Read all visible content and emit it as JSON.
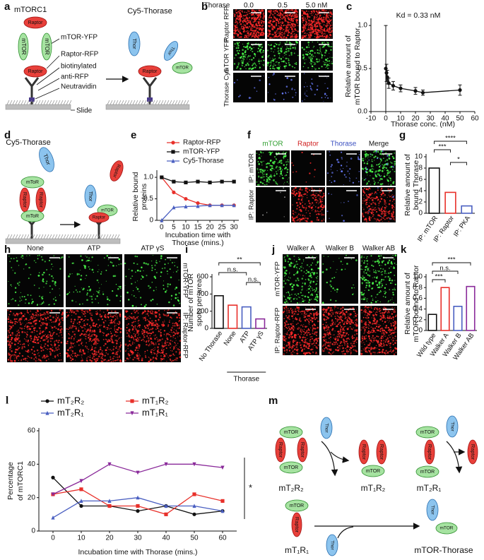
{
  "panel_labels": [
    "a",
    "b",
    "c",
    "d",
    "e",
    "f",
    "g",
    "h",
    "i",
    "j",
    "k",
    "l",
    "m"
  ],
  "diagram": {
    "mtor": "mTOR",
    "mtor_alt": "mToR",
    "raptor": "Raptor",
    "thor": "Thor"
  },
  "panel_a": {
    "complex": "mTORC1",
    "mtor_label": "mTOR-YFP",
    "raptor_label": "Raptor-RFP",
    "biotin": "biotinylated",
    "antibody": "anti-RFP",
    "neutravidin": "Neutravidin",
    "slide": "Slide",
    "reagent": "Cy5-Thorase"
  },
  "panel_b": {
    "header": "Thorase",
    "columns": [
      "0.0",
      "0.5",
      "5.0 nM"
    ],
    "rows": [
      "Raptor RFP",
      "mTOR YFP",
      "Thorase Cy5"
    ]
  },
  "panel_d": {
    "reagent": "Cy5-Thorase"
  },
  "panel_f": {
    "columns": [
      "mTOR",
      "Raptor",
      "Thorase",
      "Merge"
    ],
    "rows": [
      "IP: mTOR",
      "IP: Raptor"
    ]
  },
  "panel_h": {
    "columns": [
      "None",
      "ATP",
      "ATP γS"
    ],
    "rows": [
      "mTOR-YFP",
      "IP: Raptor-RFP"
    ]
  },
  "panel_j": {
    "columns": [
      "Walker A",
      "Walker B",
      "Walker AB"
    ],
    "rows": [
      "mTOR-YFP",
      "IP: Raptor-RFP"
    ]
  },
  "panel_m": {
    "states": [
      "mT₂R₂",
      "mT₁R₂",
      "mT₂R₁",
      "mT₁R₁",
      "mTOR-Thorase"
    ]
  },
  "chart_data": [
    {
      "type": "line",
      "xlabel": "Thorase conc. (nM)",
      "ylabel": [
        "Relative amount of",
        "mTOR bound to Raptor"
      ],
      "annotation": "Kd = 0.33 nM",
      "x": [
        0,
        0.5,
        1,
        2,
        5,
        10,
        20,
        25,
        50
      ],
      "series": [
        {
          "color": "#111111",
          "marker": "circle",
          "values": [
            0.5,
            0.45,
            0.4,
            0.33,
            0.3,
            0.27,
            0.24,
            0.22,
            0.25
          ],
          "errors": [
            0.5,
            0.1,
            0.08,
            0.06,
            0.05,
            0.04,
            0.04,
            0.03,
            0.06
          ]
        }
      ],
      "xlim": [
        -10,
        60
      ],
      "xticks": [
        -10,
        0,
        10,
        20,
        30,
        40,
        50,
        60
      ],
      "ylim": [
        0,
        1.05
      ],
      "yticks": [
        {
          "value": 0,
          "label": "0.0"
        },
        {
          "value": 0.5,
          "label": "0.5"
        },
        {
          "value": 1,
          "label": "1.0"
        }
      ]
    },
    {
      "type": "line",
      "xlabel": [
        "Incubation time with",
        "Thorase (mins.)"
      ],
      "ylabel": [
        "Relative bound",
        "proteins"
      ],
      "x": [
        0,
        5,
        10,
        15,
        20,
        25,
        30
      ],
      "series": [
        {
          "name": "Raptor-RFP",
          "color": "#e8302a",
          "marker": "circle",
          "values": [
            1,
            0.65,
            0.5,
            0.4,
            0.35,
            0.35,
            0.35
          ]
        },
        {
          "name": "mTOR-YFP",
          "color": "#111111",
          "marker": "square",
          "values": [
            1,
            0.9,
            0.88,
            0.9,
            0.88,
            0.9,
            0.9
          ]
        },
        {
          "name": "Cy5-Thorase",
          "color": "#4a5fc1",
          "marker": "triangle",
          "values": [
            0,
            0.3,
            0.32,
            0.33,
            0.35,
            0.35,
            0.35
          ]
        }
      ],
      "xlim": [
        -2,
        32
      ],
      "xticks": [
        0,
        5,
        10,
        15,
        20,
        25,
        30
      ],
      "ylim": [
        0,
        1.1
      ],
      "yticks": [
        0,
        0.5,
        {
          "value": 1,
          "label": "1.0"
        }
      ],
      "legend": "top"
    },
    {
      "type": "bar",
      "ylabel": [
        "Relative amount of",
        "bound Thorase"
      ],
      "categories": [
        "IP: mTOR",
        "IP: Raptor",
        "IP: PKA"
      ],
      "values": [
        8,
        3.7,
        1.3
      ],
      "colors": [
        "#111111",
        "#e8302a",
        "#4a5fc1"
      ],
      "ylim": [
        0,
        10
      ],
      "yticks": [
        0,
        2,
        4,
        6,
        8,
        10
      ],
      "annotations": [
        "****",
        "***",
        "*"
      ]
    },
    {
      "type": "bar",
      "ylabel": [
        "Number of mTOR",
        "spots per area"
      ],
      "categories": [
        "No Thorase",
        "None",
        "ATP",
        "ATP γS"
      ],
      "values": [
        380,
        270,
        250,
        110
      ],
      "colors": [
        "#111111",
        "#e8302a",
        "#4a5fc1",
        "#8a2a9a"
      ],
      "ylim": [
        0,
        600
      ],
      "yticks": [
        0,
        200,
        400,
        600
      ],
      "group_label": "Thorase",
      "annotations": [
        "**",
        "n.s.",
        "n.s."
      ]
    },
    {
      "type": "bar",
      "ylabel": [
        "Relative amount of",
        "mTOR bound to Raptor"
      ],
      "categories": [
        "Wild type",
        "Walker A",
        "Walker B",
        "Walker AB"
      ],
      "values": [
        0.3,
        0.8,
        0.45,
        0.82
      ],
      "colors": [
        "#111111",
        "#e8302a",
        "#4a5fc1",
        "#8a2a9a"
      ],
      "ylim": [
        0,
        1
      ],
      "yticks": [
        0,
        0.2,
        0.4,
        0.6,
        0.8,
        {
          "value": 1,
          "label": "1.0"
        }
      ],
      "annotations": [
        "***",
        "n.s.",
        "***"
      ]
    },
    {
      "type": "line",
      "xlabel": "Incubation time with Thorase (mins.)",
      "ylabel": [
        "Percentage",
        "of mTORC1"
      ],
      "annotation": "*",
      "x": [
        0,
        10,
        20,
        30,
        40,
        50,
        60
      ],
      "series": [
        {
          "name": "mT₂R₂",
          "color": "#111111",
          "marker": "circle",
          "values": [
            32,
            15,
            15,
            12,
            15,
            10,
            12
          ]
        },
        {
          "name": "mT₁R₂",
          "color": "#e8302a",
          "marker": "square",
          "values": [
            22,
            25,
            15,
            15,
            10,
            22,
            18
          ]
        },
        {
          "name": "mT₂R₁",
          "color": "#4a5fc1",
          "marker": "triangle",
          "values": [
            8,
            18,
            18,
            20,
            15,
            15,
            12
          ]
        },
        {
          "name": "mT₁R₁",
          "color": "#8a2a9a",
          "marker": "triangle-down",
          "values": [
            22,
            30,
            40,
            35,
            40,
            40,
            38
          ]
        }
      ],
      "xlim": [
        -5,
        65
      ],
      "xticks": [
        0,
        10,
        20,
        30,
        40,
        50,
        60
      ],
      "ylim": [
        0,
        60
      ],
      "yticks": [
        0,
        20,
        40,
        60
      ],
      "legend": "top"
    }
  ]
}
